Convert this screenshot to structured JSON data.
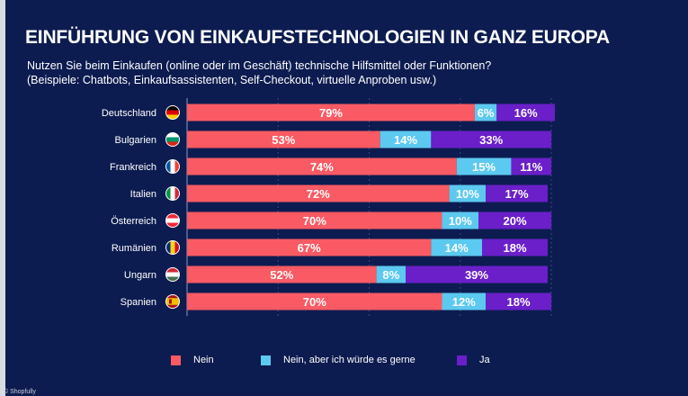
{
  "header": {
    "title": "EINFÜHRUNG VON EINKAUFSTECHNOLOGIEN IN GANZ EUROPA",
    "subtitle_line1": "Nutzen Sie beim Einkaufen (online oder im Geschäft) technische Hilfsmittel oder Funktionen?",
    "subtitle_line2": "(Beispiele: Chatbots, Einkaufsassistenten, Self-Checkout, virtuelle Anproben usw.)"
  },
  "chart_data": {
    "type": "bar",
    "orientation": "horizontal",
    "stacked": true,
    "unit": "%",
    "xlim": [
      0,
      100
    ],
    "categories": [
      "Deutschland",
      "Bulgarien",
      "Frankreich",
      "Italien",
      "Österreich",
      "Rumänien",
      "Ungarn",
      "Spanien"
    ],
    "series": [
      {
        "name": "Nein",
        "color": "#f95a63",
        "values": [
          79,
          53,
          74,
          72,
          70,
          67,
          52,
          70
        ]
      },
      {
        "name": "Nein, aber ich würde es gerne",
        "color": "#5cc9f0",
        "values": [
          6,
          14,
          15,
          10,
          10,
          14,
          8,
          12
        ]
      },
      {
        "name": "Ja",
        "color": "#6a1fc9",
        "values": [
          16,
          33,
          11,
          17,
          20,
          18,
          39,
          18
        ]
      }
    ],
    "flags": [
      "flag-germany",
      "flag-bulgaria",
      "flag-france",
      "flag-italy",
      "flag-austria",
      "flag-romania",
      "flag-hungary",
      "flag-spain"
    ],
    "legend_position": "bottom"
  },
  "footer": {
    "copyright": "© Shopfully"
  }
}
